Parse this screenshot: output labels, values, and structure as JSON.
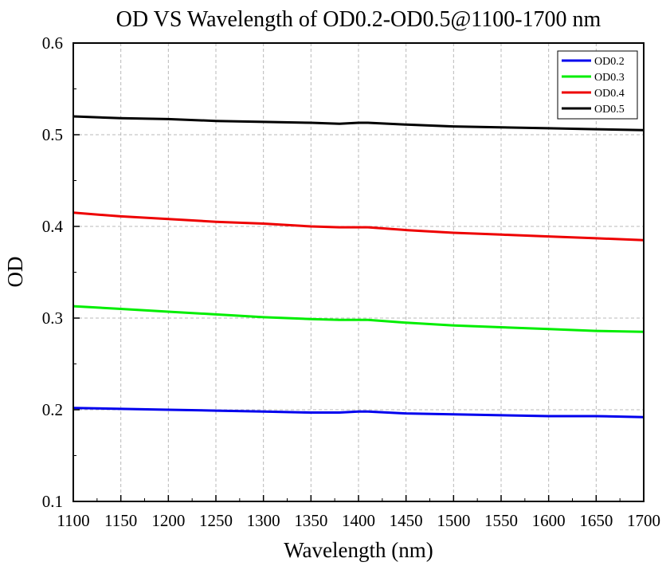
{
  "chart_data": {
    "type": "line",
    "title": "OD VS Wavelength of OD0.2-OD0.5@1100-1700 nm",
    "xlabel": "Wavelength (nm)",
    "ylabel": "OD",
    "xlim": [
      1100,
      1700
    ],
    "ylim": [
      0.1,
      0.6
    ],
    "xticks": [
      1100,
      1150,
      1200,
      1250,
      1300,
      1350,
      1400,
      1450,
      1500,
      1550,
      1600,
      1650,
      1700
    ],
    "xtick_labels": [
      "1100",
      "1150",
      "1200",
      "1250",
      "1300",
      "1350",
      "1400",
      "1450",
      "1500",
      "1550",
      "1600",
      "1650",
      "1700"
    ],
    "yticks": [
      0.1,
      0.2,
      0.3,
      0.4,
      0.5,
      0.6
    ],
    "ytick_labels": [
      "0.1",
      "0.2",
      "0.3",
      "0.4",
      "0.5",
      "0.6"
    ],
    "grid": true,
    "legend_position": "top-right",
    "x": [
      1100,
      1150,
      1200,
      1250,
      1300,
      1350,
      1380,
      1400,
      1410,
      1450,
      1500,
      1550,
      1600,
      1650,
      1700
    ],
    "series": [
      {
        "name": "OD0.2",
        "color": "#0000ee",
        "values": [
          0.202,
          0.201,
          0.2,
          0.199,
          0.198,
          0.197,
          0.197,
          0.198,
          0.198,
          0.196,
          0.195,
          0.194,
          0.193,
          0.193,
          0.192
        ]
      },
      {
        "name": "OD0.3",
        "color": "#00ee00",
        "values": [
          0.313,
          0.31,
          0.307,
          0.304,
          0.301,
          0.299,
          0.298,
          0.298,
          0.298,
          0.295,
          0.292,
          0.29,
          0.288,
          0.286,
          0.285
        ]
      },
      {
        "name": "OD0.4",
        "color": "#ee0000",
        "values": [
          0.415,
          0.411,
          0.408,
          0.405,
          0.403,
          0.4,
          0.399,
          0.399,
          0.399,
          0.396,
          0.393,
          0.391,
          0.389,
          0.387,
          0.385
        ]
      },
      {
        "name": "OD0.5",
        "color": "#000000",
        "values": [
          0.52,
          0.518,
          0.517,
          0.515,
          0.514,
          0.513,
          0.512,
          0.513,
          0.513,
          0.511,
          0.509,
          0.508,
          0.507,
          0.506,
          0.505
        ]
      }
    ]
  }
}
